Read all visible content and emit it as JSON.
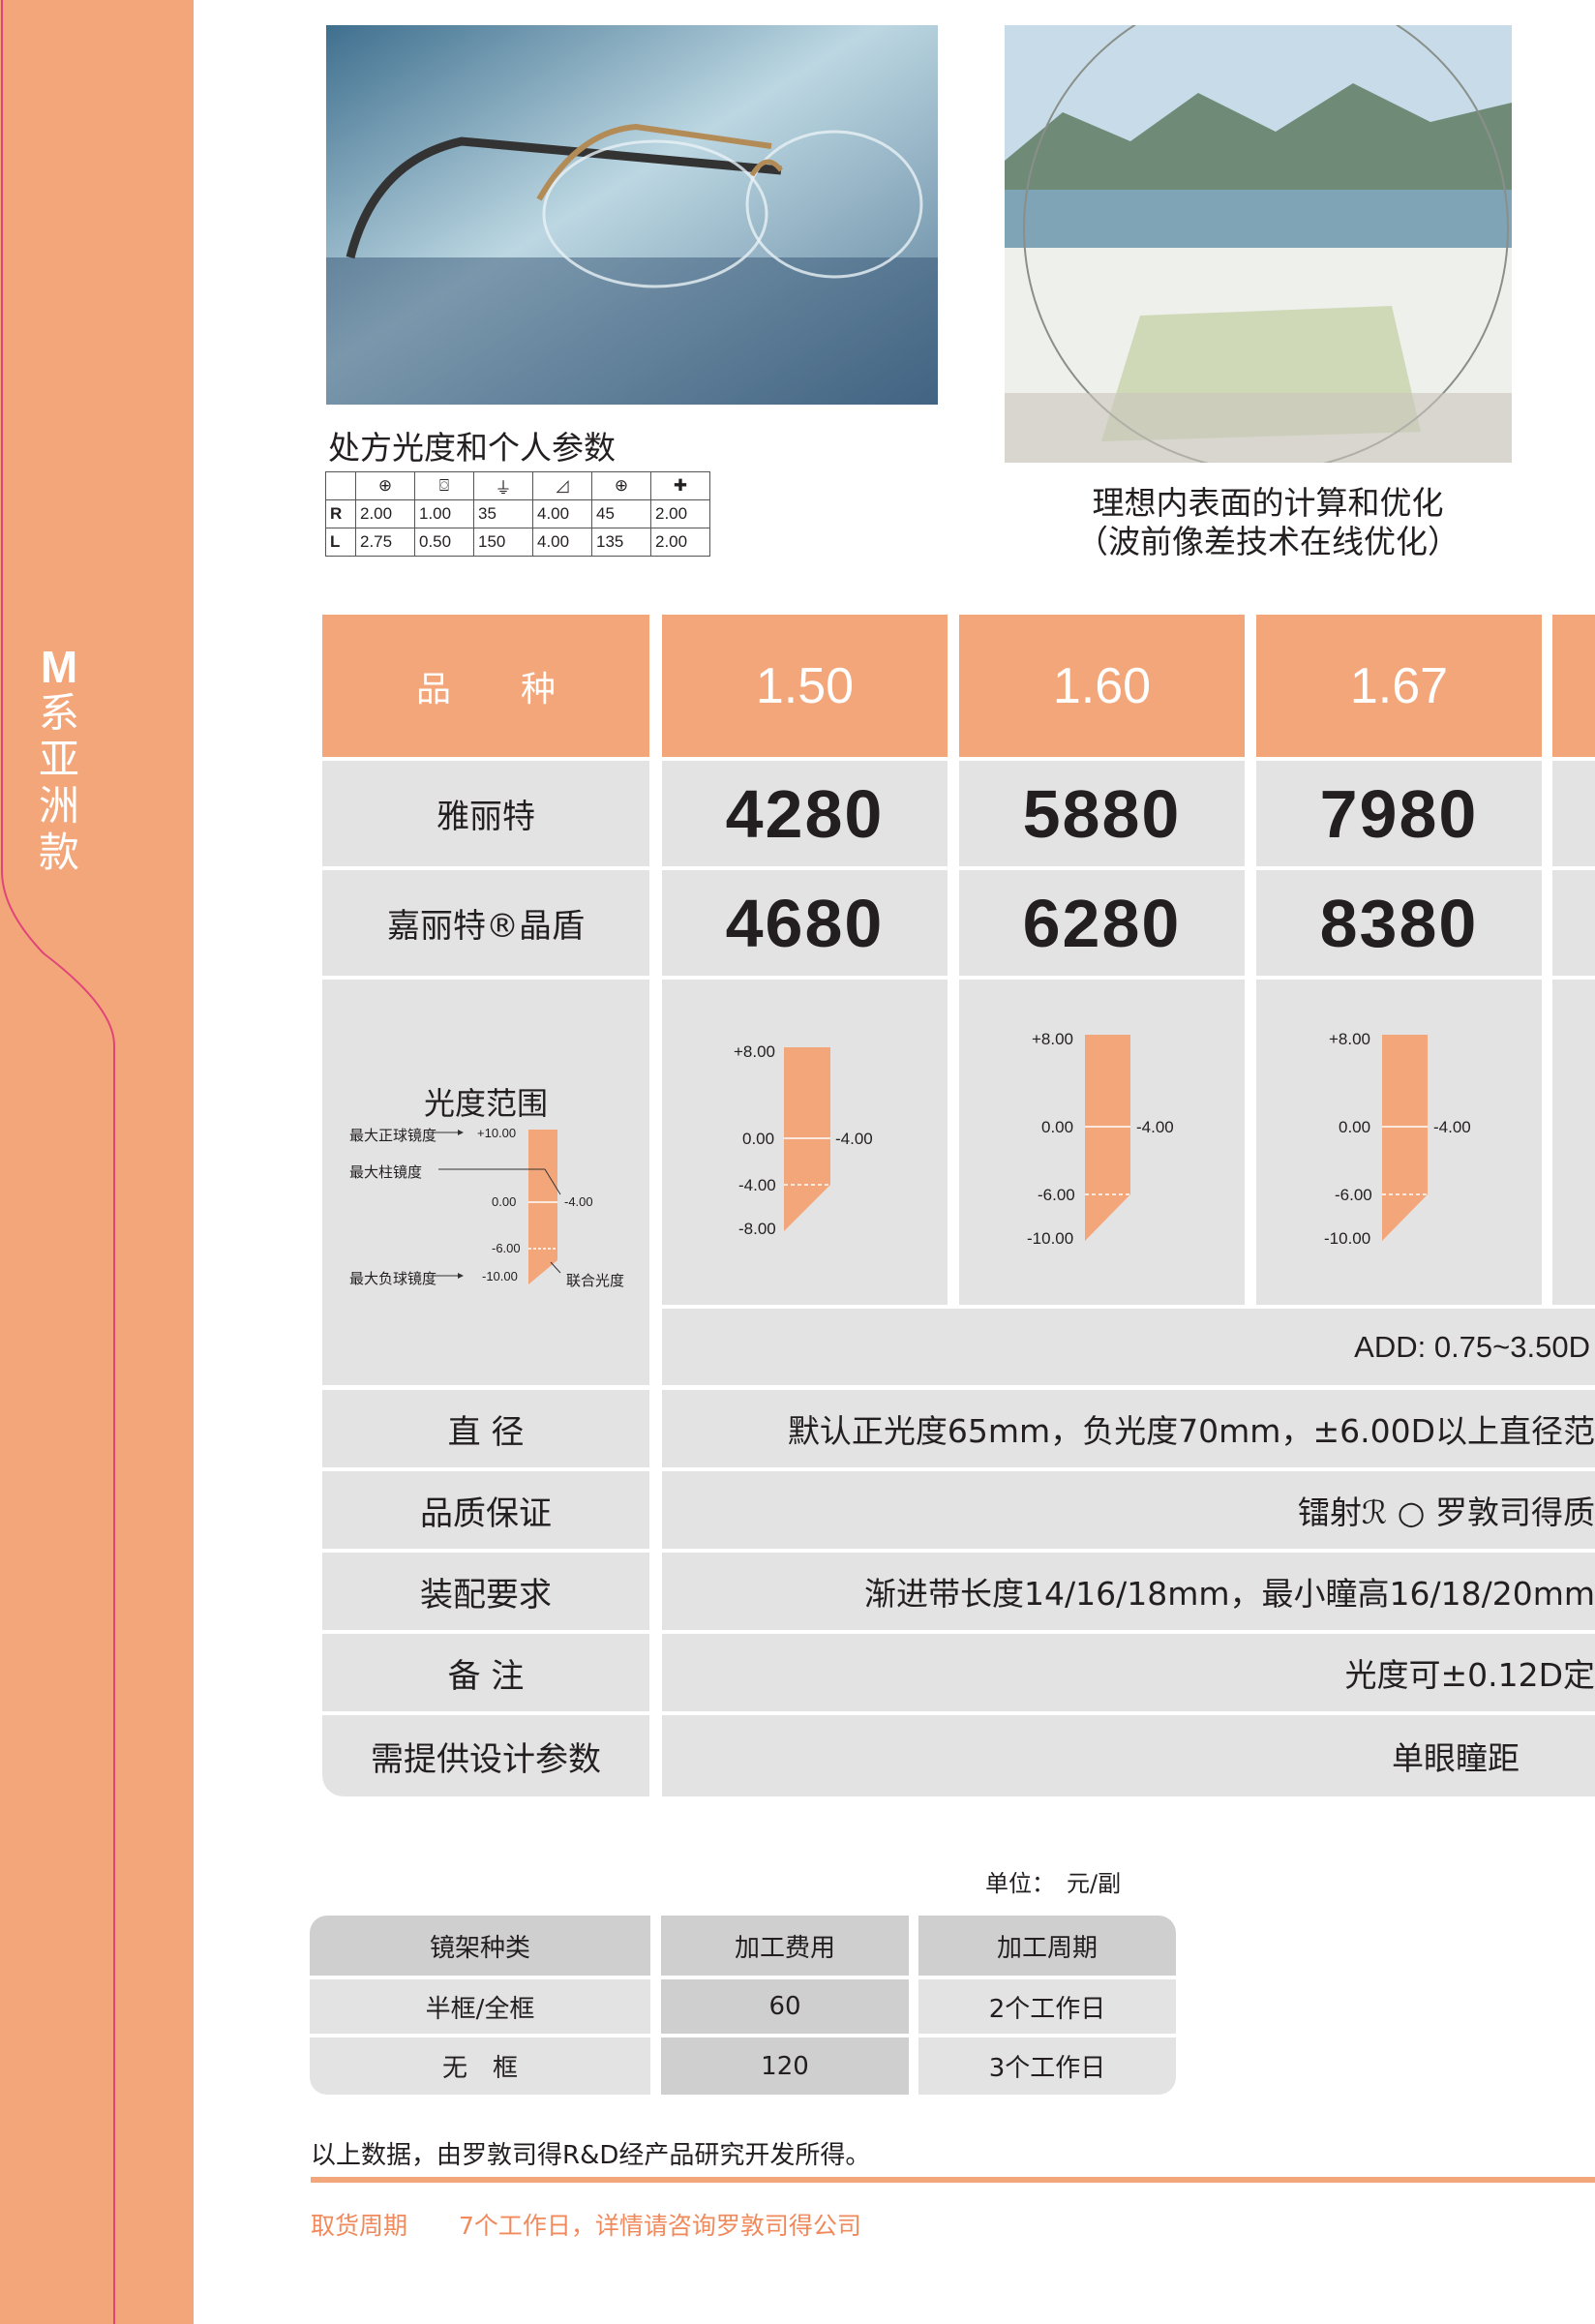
{
  "sidebar": {
    "letter": "M",
    "chars": [
      "系",
      "亚",
      "洲",
      "款"
    ]
  },
  "captions": {
    "rx_title": "处方光度和个人参数",
    "lens_line1": "理想内表面的计算和优化",
    "lens_line2": "（波前像差技术在线优化）"
  },
  "rx_table": {
    "icons": [
      "sphere-icon",
      "cylinder-icon",
      "axis-icon",
      "prism-icon",
      "prism-base-icon",
      "add-icon"
    ],
    "rows": [
      {
        "eye": "R",
        "values": [
          "2.00",
          "1.00",
          "35",
          "4.00",
          "45",
          "2.00"
        ]
      },
      {
        "eye": "L",
        "values": [
          "2.75",
          "0.50",
          "150",
          "4.00",
          "135",
          "2.00"
        ]
      }
    ]
  },
  "main_table": {
    "header_label": "品　　种",
    "indices": [
      "1.50",
      "1.60",
      "1.67"
    ],
    "products": [
      {
        "name": "雅丽特",
        "prices": [
          "4280",
          "5880",
          "7980"
        ]
      },
      {
        "name": "嘉丽特®晶盾",
        "prices": [
          "4680",
          "6280",
          "8380"
        ]
      }
    ],
    "range_label": "光度范围",
    "legend": {
      "max_plus": "最大正球镜度",
      "max_cyl": "最大柱镜度",
      "max_minus": "最大负球镜度",
      "combined": "联合光度",
      "ticks": [
        "+10.00",
        "0.00",
        "-4.00",
        "-6.00",
        "-10.00"
      ]
    },
    "ranges": [
      {
        "top": "+8.00",
        "zero": "0.00",
        "cyl": "-4.00",
        "mid": "-4.00",
        "bottom": "-8.00"
      },
      {
        "top": "+8.00",
        "zero": "0.00",
        "cyl": "-4.00",
        "mid": "-6.00",
        "bottom": "-10.00"
      },
      {
        "top": "+8.00",
        "zero": "0.00",
        "cyl": "-4.00",
        "mid": "-6.00",
        "bottom": "-10.00"
      }
    ],
    "add_range": "ADD: 0.75~3.50D",
    "rows": [
      {
        "label": "直 径",
        "value": "默认正光度65mm，负光度70mm，±6.00D以上直径范"
      },
      {
        "label": "品质保证",
        "value": "镭射ℛ ○ 罗敦司得质"
      },
      {
        "label": "装配要求",
        "value": "渐进带长度14/16/18mm，最小瞳高16/18/20mm"
      },
      {
        "label": "备 注",
        "value": "光度可±0.12D定"
      },
      {
        "label": "需提供设计参数",
        "value": "单眼瞳距"
      }
    ]
  },
  "unit_label": "单位：　元/副",
  "processing_table": {
    "headers": [
      "镜架种类",
      "加工费用",
      "加工周期"
    ],
    "rows": [
      [
        "半框/全框",
        "60",
        "2个工作日"
      ],
      [
        "无　框",
        "120",
        "3个工作日"
      ]
    ]
  },
  "footer": {
    "note": "以上数据，由罗敦司得R&D经产品研究开发所得。",
    "delivery_label": "取货周期",
    "delivery_text": "7个工作日，详情请咨询罗敦司得公司"
  },
  "colors": {
    "accent": "#f3a67a",
    "cell": "#e3e3e3",
    "footer_text": "#f08a5d"
  }
}
